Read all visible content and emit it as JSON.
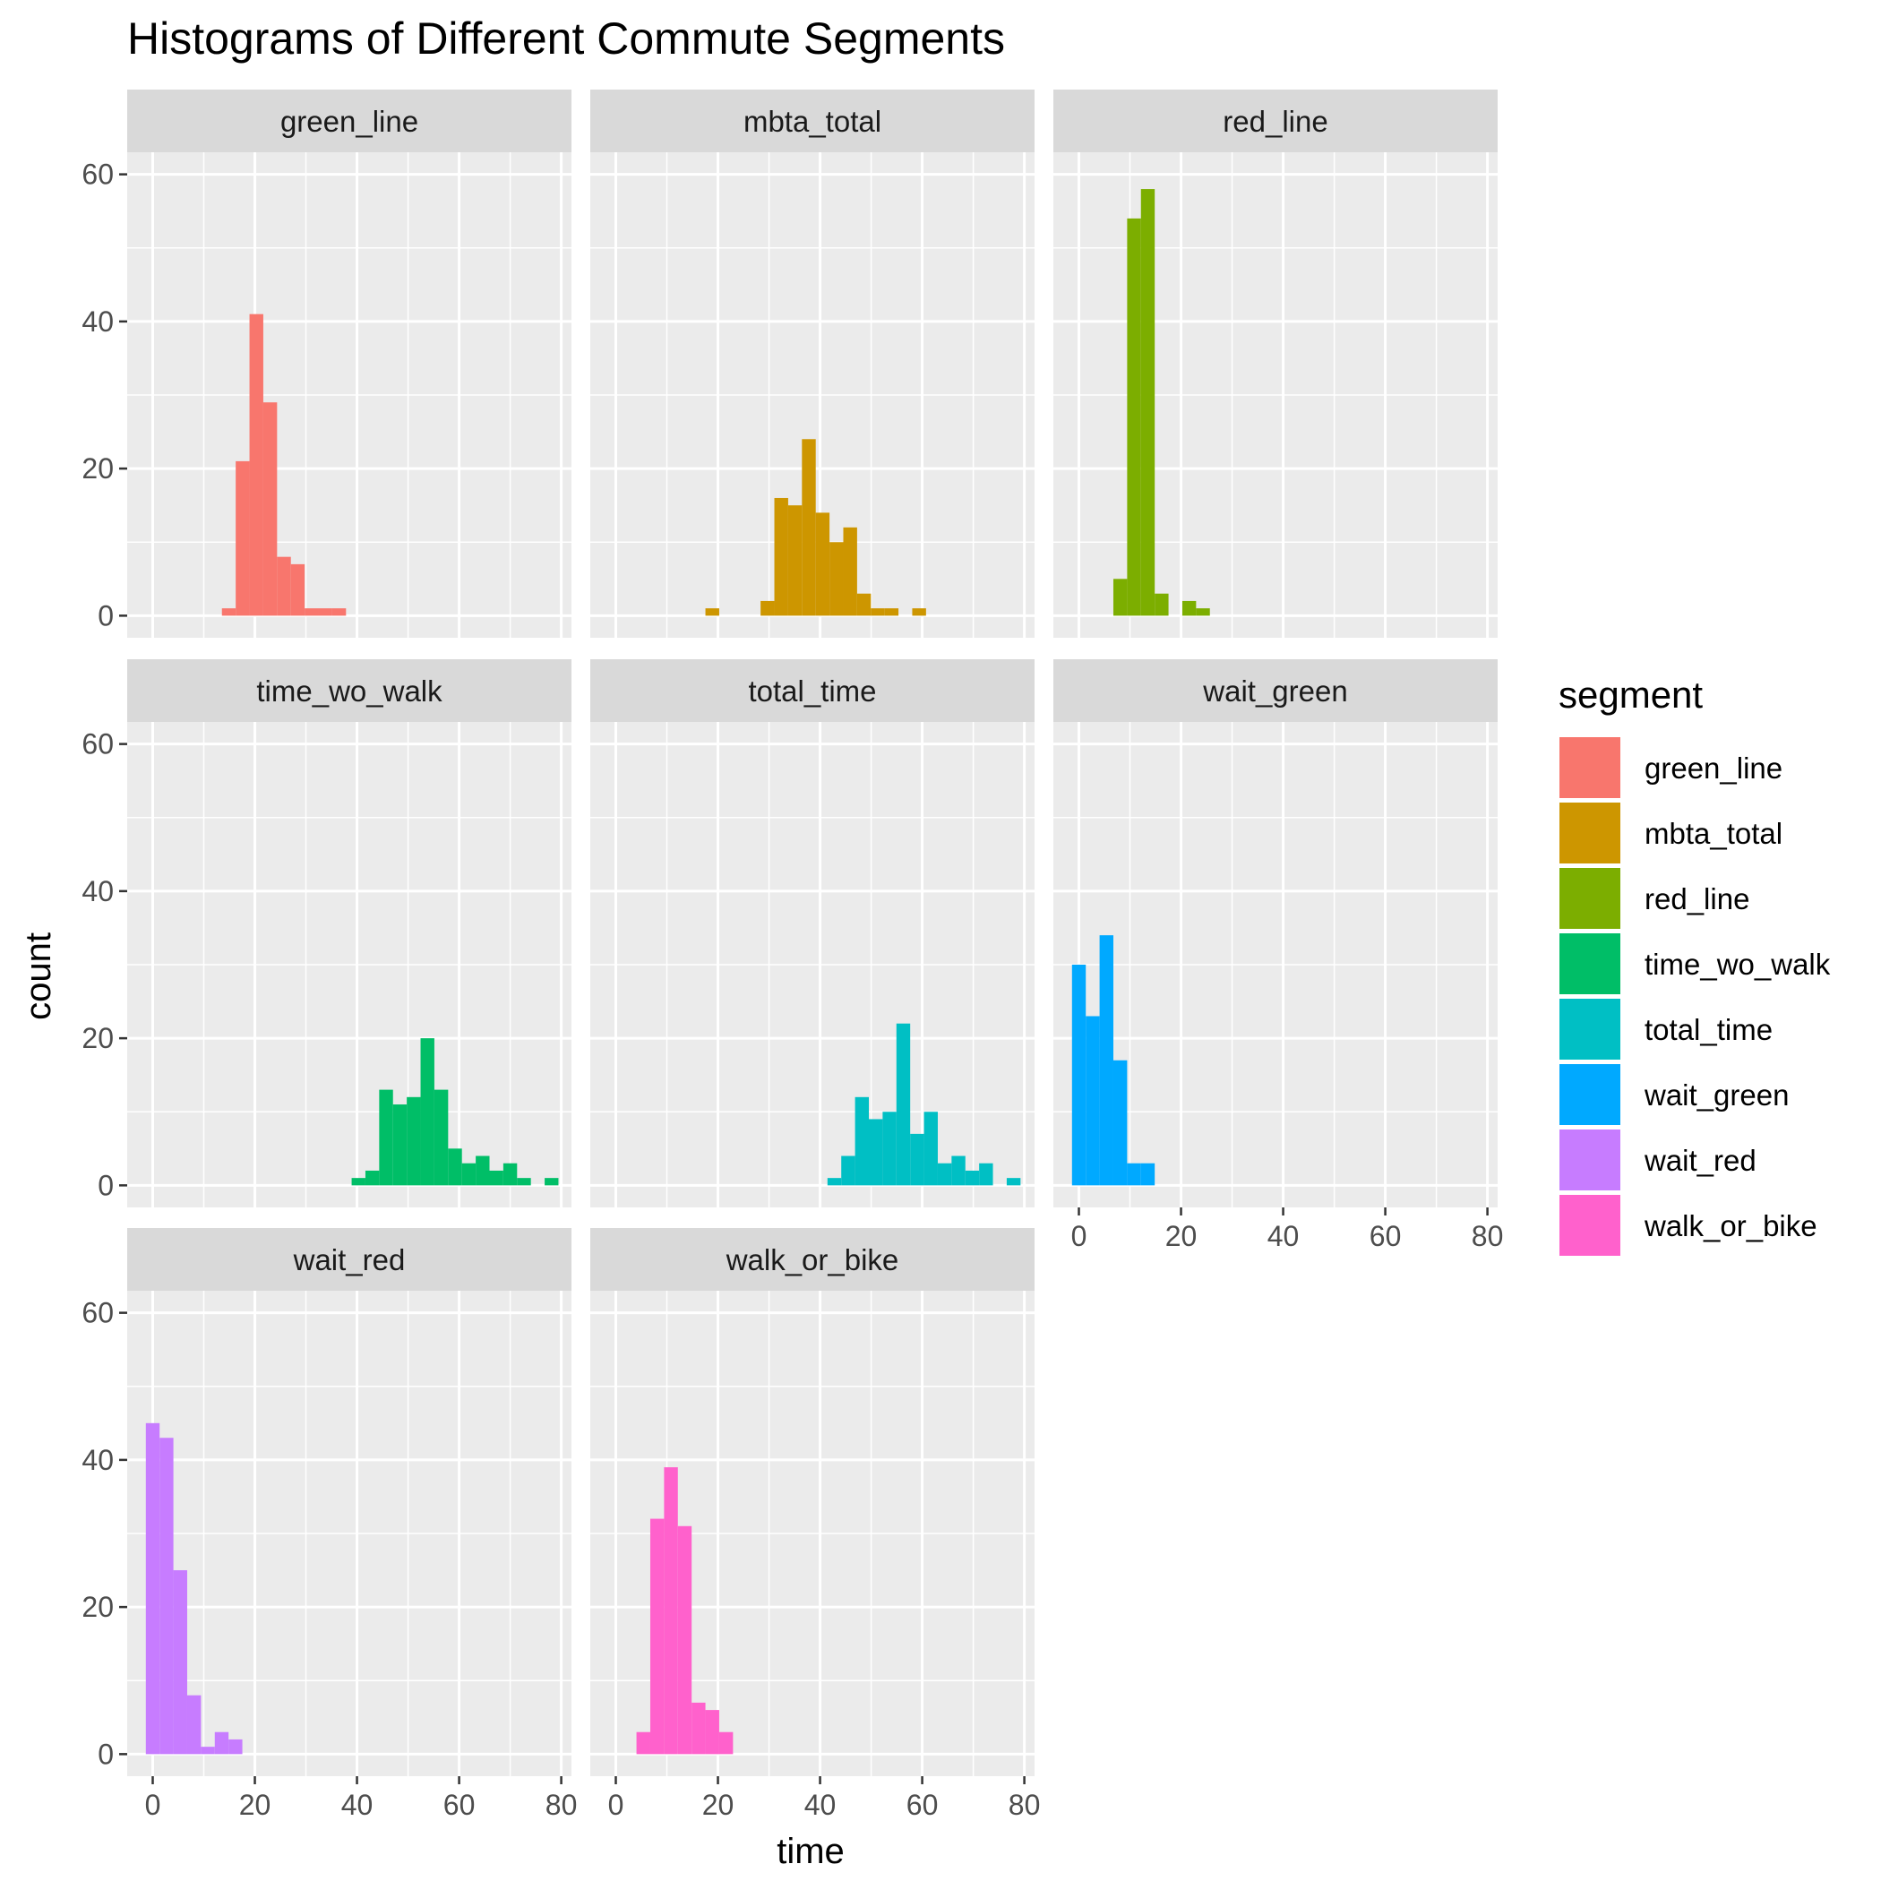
{
  "chart_data": {
    "type": "bar",
    "title": "Histograms of Different Commute Segments",
    "xlabel": "time",
    "ylabel": "count",
    "xlim": [
      -5,
      82
    ],
    "ylim": [
      -3,
      63
    ],
    "x_ticks": [
      0,
      20,
      40,
      60,
      80
    ],
    "y_ticks": [
      0,
      20,
      40,
      60
    ],
    "bin_width": 2.7,
    "grid": true,
    "legend": {
      "title": "segment",
      "placement": "right",
      "entries": [
        "green_line",
        "mbta_total",
        "red_line",
        "time_wo_walk",
        "total_time",
        "wait_green",
        "wait_red",
        "walk_or_bike"
      ]
    },
    "panels": [
      {
        "name": "green_line",
        "color": "#F8766D",
        "bins": [
          [
            14.9,
            1
          ],
          [
            17.6,
            21
          ],
          [
            20.3,
            41
          ],
          [
            23.0,
            29
          ],
          [
            25.7,
            8
          ],
          [
            28.4,
            7
          ],
          [
            31.1,
            1
          ],
          [
            33.8,
            1
          ],
          [
            36.5,
            1
          ]
        ]
      },
      {
        "name": "mbta_total",
        "color": "#CD9600",
        "bins": [
          [
            18.9,
            1
          ],
          [
            29.7,
            2
          ],
          [
            32.4,
            16
          ],
          [
            35.1,
            15
          ],
          [
            37.8,
            24
          ],
          [
            40.5,
            14
          ],
          [
            43.2,
            10
          ],
          [
            45.9,
            12
          ],
          [
            48.6,
            3
          ],
          [
            51.3,
            1
          ],
          [
            54.0,
            1
          ],
          [
            59.4,
            1
          ]
        ]
      },
      {
        "name": "red_line",
        "color": "#7CAE00",
        "bins": [
          [
            8.1,
            5
          ],
          [
            10.8,
            54
          ],
          [
            13.5,
            58
          ],
          [
            16.2,
            3
          ],
          [
            21.6,
            2
          ],
          [
            24.3,
            1
          ]
        ]
      },
      {
        "name": "time_wo_walk",
        "color": "#00BE67",
        "bins": [
          [
            40.3,
            1
          ],
          [
            43.0,
            2
          ],
          [
            45.7,
            13
          ],
          [
            48.4,
            11
          ],
          [
            51.1,
            12
          ],
          [
            53.8,
            20
          ],
          [
            56.5,
            13
          ],
          [
            59.2,
            5
          ],
          [
            61.9,
            3
          ],
          [
            64.6,
            4
          ],
          [
            67.3,
            2
          ],
          [
            70.0,
            3
          ],
          [
            72.7,
            1
          ],
          [
            78.1,
            1
          ]
        ]
      },
      {
        "name": "total_time",
        "color": "#00BFC4",
        "bins": [
          [
            42.8,
            1
          ],
          [
            45.5,
            4
          ],
          [
            48.2,
            12
          ],
          [
            50.9,
            9
          ],
          [
            53.6,
            10
          ],
          [
            56.3,
            22
          ],
          [
            59.0,
            7
          ],
          [
            61.7,
            10
          ],
          [
            64.4,
            3
          ],
          [
            67.1,
            4
          ],
          [
            69.8,
            2
          ],
          [
            72.5,
            3
          ],
          [
            77.9,
            1
          ]
        ]
      },
      {
        "name": "wait_green",
        "color": "#00A9FF",
        "bins": [
          [
            0.0,
            30
          ],
          [
            2.7,
            23
          ],
          [
            5.4,
            34
          ],
          [
            8.1,
            17
          ],
          [
            10.8,
            3
          ],
          [
            13.5,
            3
          ]
        ]
      },
      {
        "name": "wait_red",
        "color": "#C77CFF",
        "bins": [
          [
            0.0,
            45
          ],
          [
            2.7,
            43
          ],
          [
            5.4,
            25
          ],
          [
            8.1,
            8
          ],
          [
            10.8,
            1
          ],
          [
            13.5,
            3
          ],
          [
            16.2,
            2
          ]
        ]
      },
      {
        "name": "walk_or_bike",
        "color": "#FF61CC",
        "bins": [
          [
            5.4,
            3
          ],
          [
            8.1,
            32
          ],
          [
            10.8,
            39
          ],
          [
            13.5,
            31
          ],
          [
            16.2,
            7
          ],
          [
            18.9,
            6
          ],
          [
            21.6,
            3
          ]
        ]
      }
    ]
  }
}
